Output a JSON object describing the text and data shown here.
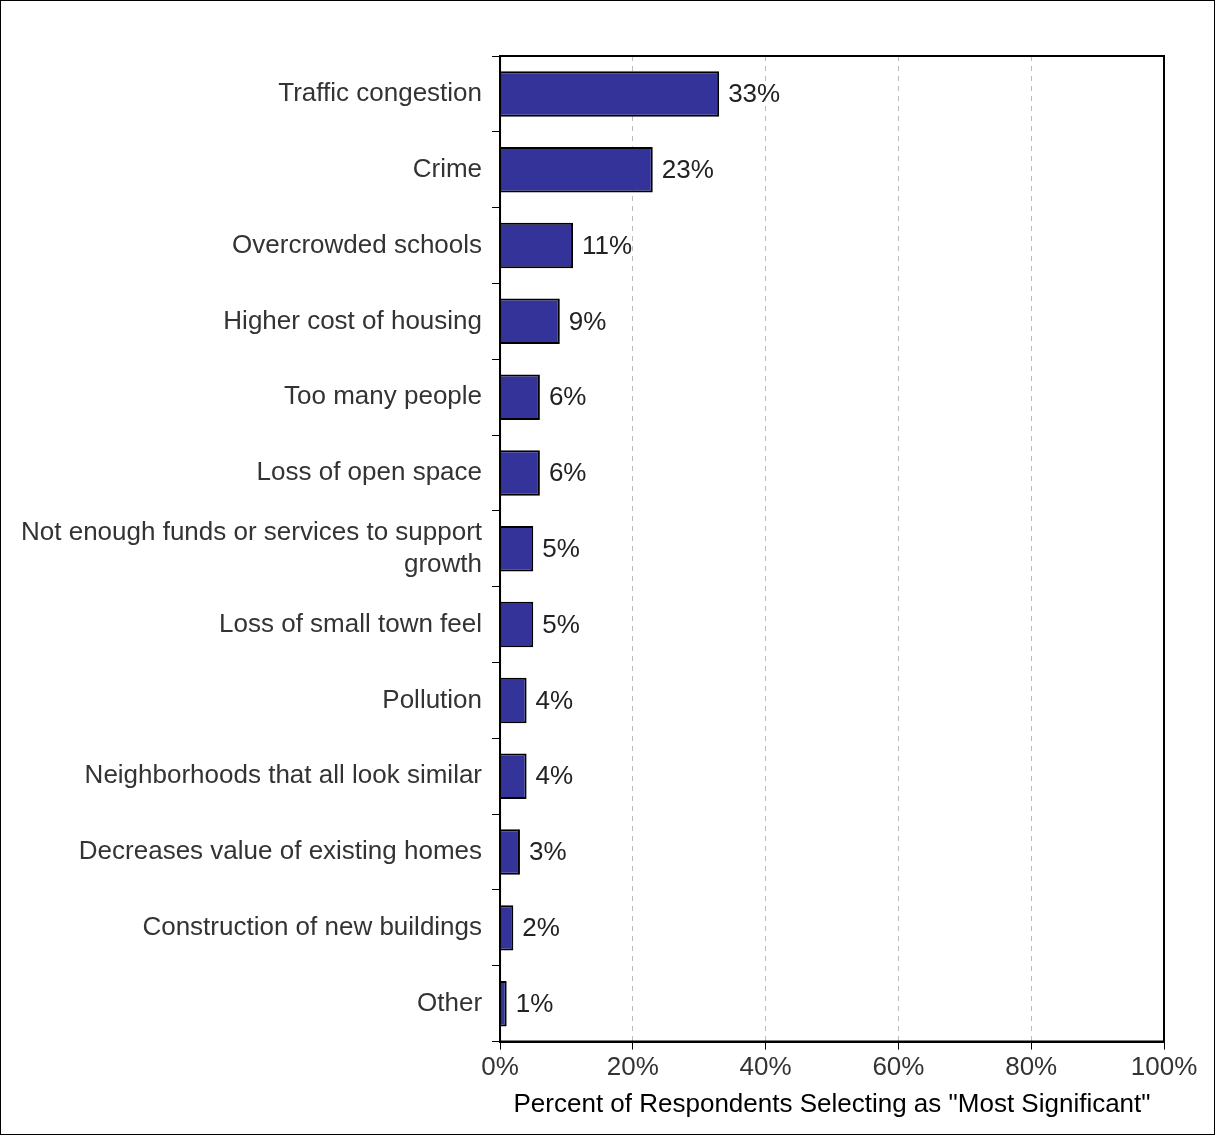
{
  "chart_data": {
    "type": "bar",
    "orientation": "horizontal",
    "xlabel": "Percent of Respondents Selecting as \"Most Significant\"",
    "categories": [
      "Traffic congestion",
      "Crime",
      "Overcrowded schools",
      "Higher cost of housing",
      "Too many people",
      "Loss of open space",
      "Not enough funds or services to support growth",
      "Loss of small town feel",
      "Pollution",
      "Neighborhoods that all look similar",
      "Decreases value of existing homes",
      "Construction of new buildings",
      "Other"
    ],
    "values": [
      33,
      23,
      11,
      9,
      6,
      6,
      5,
      5,
      4,
      4,
      3,
      2,
      1
    ],
    "value_labels": [
      "33%",
      "23%",
      "11%",
      "9%",
      "6%",
      "6%",
      "5%",
      "5%",
      "4%",
      "4%",
      "3%",
      "2%",
      "1%"
    ],
    "color": "#333399",
    "xlim": [
      0,
      100
    ],
    "xticks": [
      {
        "value": 0,
        "label": "0%"
      },
      {
        "value": 20,
        "label": "20%"
      },
      {
        "value": 40,
        "label": "40%"
      },
      {
        "value": 60,
        "label": "60%"
      },
      {
        "value": 80,
        "label": "80%"
      },
      {
        "value": 100,
        "label": "100%"
      }
    ],
    "grid": "x",
    "legend": false
  }
}
